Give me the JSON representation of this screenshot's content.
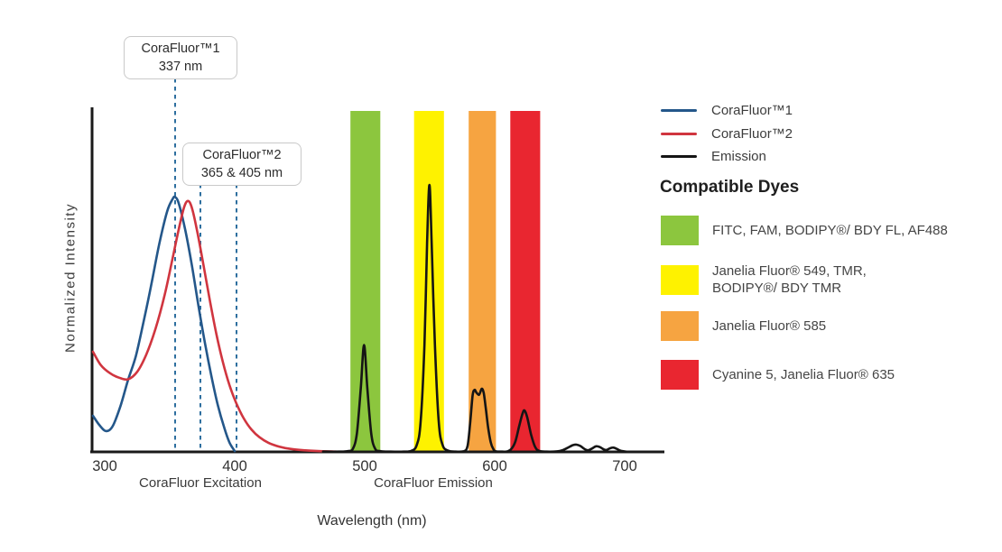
{
  "chart_data": {
    "type": "line",
    "title": "",
    "xlabel": "Wavelength (nm)",
    "ylabel": "Normalized Intensity",
    "x_tick_labels": [
      "300",
      "400",
      "500",
      "600",
      "700"
    ],
    "x_axis_regions": [
      {
        "label": "CoraFluor Excitation"
      },
      {
        "label": "CoraFluor Emission"
      }
    ],
    "x_range_nm": [
      290,
      730
    ],
    "y_range": [
      0,
      1
    ],
    "grid": false,
    "legend": {
      "position": "top-right",
      "entries": [
        {
          "label": "CoraFluor™1",
          "color": "#24578a"
        },
        {
          "label": "CoraFluor™2",
          "color": "#d0353f"
        },
        {
          "label": "Emission",
          "color": "#151515"
        }
      ]
    },
    "annotations": [
      {
        "title": "CoraFluor™1",
        "detail": "337 nm",
        "marker_wavelengths_nm": [
          337
        ]
      },
      {
        "title": "CoraFluor™2",
        "detail": "365 & 405 nm",
        "marker_wavelengths_nm": [
          365,
          405
        ]
      }
    ],
    "bands": [
      {
        "name": "FITC, FAM, BODIPY®/ BDY FL, AF488",
        "range_nm": [
          489,
          512
        ],
        "color": "#8cc63e"
      },
      {
        "name": "Janelia Fluor® 549, TMR, BODIPY®/ BDY TMR",
        "range_nm": [
          538,
          561
        ],
        "color": "#fef200"
      },
      {
        "name": "Janelia Fluor® 585",
        "range_nm": [
          580,
          601
        ],
        "color": "#f6a441"
      },
      {
        "name": "Cyanine 5, Janelia Fluor® 635",
        "range_nm": [
          612,
          635
        ],
        "color": "#e92630"
      }
    ],
    "series": [
      {
        "name": "CoraFluor™1 excitation",
        "color": "#24578a",
        "points": [
          [
            291,
            0.135
          ],
          [
            296,
            0.1
          ],
          [
            301,
            0.078
          ],
          [
            306,
            0.095
          ],
          [
            312,
            0.17
          ],
          [
            318,
            0.27
          ],
          [
            324,
            0.36
          ],
          [
            330,
            0.49
          ],
          [
            336,
            0.63
          ],
          [
            342,
            0.78
          ],
          [
            348,
            0.9
          ],
          [
            352,
            0.945
          ],
          [
            354,
            0.955
          ],
          [
            357,
            0.93
          ],
          [
            362,
            0.83
          ],
          [
            367,
            0.7
          ],
          [
            372,
            0.55
          ],
          [
            377,
            0.41
          ],
          [
            382,
            0.285
          ],
          [
            387,
            0.175
          ],
          [
            392,
            0.09
          ],
          [
            396,
            0.035
          ],
          [
            400,
            0.003
          ]
        ]
      },
      {
        "name": "CoraFluor™2 excitation",
        "color": "#d0353f",
        "points": [
          [
            291,
            0.375
          ],
          [
            297,
            0.325
          ],
          [
            304,
            0.295
          ],
          [
            311,
            0.278
          ],
          [
            318,
            0.272
          ],
          [
            325,
            0.3
          ],
          [
            332,
            0.365
          ],
          [
            339,
            0.46
          ],
          [
            346,
            0.585
          ],
          [
            352,
            0.72
          ],
          [
            357,
            0.835
          ],
          [
            361,
            0.915
          ],
          [
            364,
            0.94
          ],
          [
            367,
            0.915
          ],
          [
            371,
            0.83
          ],
          [
            376,
            0.7
          ],
          [
            381,
            0.565
          ],
          [
            386,
            0.44
          ],
          [
            391,
            0.335
          ],
          [
            396,
            0.25
          ],
          [
            401,
            0.185
          ],
          [
            407,
            0.125
          ],
          [
            413,
            0.083
          ],
          [
            419,
            0.055
          ],
          [
            426,
            0.034
          ],
          [
            434,
            0.02
          ],
          [
            443,
            0.011
          ],
          [
            453,
            0.006
          ],
          [
            464,
            0.003
          ],
          [
            478,
            0.001
          ]
        ]
      },
      {
        "name": "Emission",
        "color": "#151515",
        "points": [
          [
            468,
            0.001
          ],
          [
            480,
            0.001
          ],
          [
            487,
            0.003
          ],
          [
            491,
            0.012
          ],
          [
            494,
            0.07
          ],
          [
            497,
            0.24
          ],
          [
            499.5,
            0.4
          ],
          [
            502,
            0.24
          ],
          [
            505,
            0.07
          ],
          [
            508,
            0.012
          ],
          [
            512,
            0.003
          ],
          [
            520,
            0.001
          ],
          [
            530,
            0.001
          ],
          [
            536,
            0.004
          ],
          [
            540,
            0.025
          ],
          [
            543,
            0.11
          ],
          [
            546,
            0.4
          ],
          [
            548,
            0.78
          ],
          [
            549.8,
            1.0
          ],
          [
            551.5,
            0.78
          ],
          [
            554,
            0.4
          ],
          [
            557,
            0.11
          ],
          [
            560,
            0.025
          ],
          [
            564,
            0.005
          ],
          [
            570,
            0.001
          ],
          [
            576,
            0.002
          ],
          [
            579,
            0.02
          ],
          [
            581,
            0.1
          ],
          [
            583,
            0.21
          ],
          [
            584.5,
            0.232
          ],
          [
            586,
            0.222
          ],
          [
            588,
            0.214
          ],
          [
            590,
            0.236
          ],
          [
            591.5,
            0.222
          ],
          [
            593,
            0.17
          ],
          [
            595,
            0.09
          ],
          [
            597,
            0.035
          ],
          [
            599,
            0.01
          ],
          [
            601,
            0.002
          ],
          [
            606,
            0.001
          ],
          [
            610,
            0.002
          ],
          [
            613,
            0.012
          ],
          [
            616,
            0.04
          ],
          [
            619,
            0.1
          ],
          [
            621.5,
            0.145
          ],
          [
            623,
            0.155
          ],
          [
            625,
            0.13
          ],
          [
            628,
            0.065
          ],
          [
            631,
            0.02
          ],
          [
            634,
            0.004
          ],
          [
            640,
            0.001
          ],
          [
            648,
            0.002
          ],
          [
            652,
            0.006
          ],
          [
            656,
            0.015
          ],
          [
            660,
            0.025
          ],
          [
            663,
            0.027
          ],
          [
            666,
            0.022
          ],
          [
            669,
            0.011
          ],
          [
            672,
            0.006
          ],
          [
            675,
            0.013
          ],
          [
            678,
            0.021
          ],
          [
            681,
            0.018
          ],
          [
            684,
            0.009
          ],
          [
            686,
            0.007
          ],
          [
            689,
            0.014
          ],
          [
            691.5,
            0.016
          ],
          [
            694,
            0.011
          ],
          [
            697,
            0.004
          ],
          [
            701,
            0.001
          ]
        ]
      }
    ]
  },
  "dye_key": {
    "heading": "Compatible Dyes",
    "items": [
      {
        "color": "#8cc63e",
        "line1": "FITC, FAM, BODIPY®/ BDY FL, AF488",
        "line2": ""
      },
      {
        "color": "#fef200",
        "line1": "Janelia Fluor® 549, TMR,",
        "line2": "BODIPY®/ BDY TMR"
      },
      {
        "color": "#f6a441",
        "line1": "Janelia Fluor® 585",
        "line2": ""
      },
      {
        "color": "#e92630",
        "line1": "Cyanine 5, Janelia Fluor® 635",
        "line2": ""
      }
    ]
  }
}
